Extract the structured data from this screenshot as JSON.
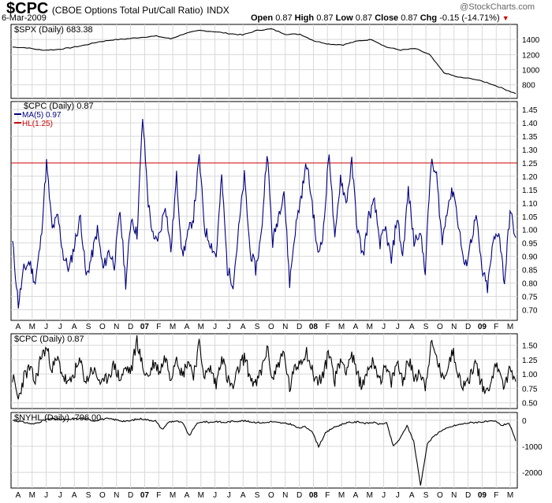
{
  "header": {
    "symbol": "$CPC",
    "name": "(CBOE Options Total Put/Call Ratio)",
    "exchange": "INDX",
    "date": "6-Mar-2009",
    "open_label": "Open",
    "open": "0.87",
    "high_label": "High",
    "high": "0.87",
    "low_label": "Low",
    "low": "0.87",
    "close_label": "Close",
    "close": "0.87",
    "chg_label": "Chg",
    "chg": "-0.15 (-14.71%)",
    "logo": "@StockCharts.com"
  },
  "colors": {
    "price": "#000000",
    "ma": "#000080",
    "hl": "#cc0000",
    "grid": "#d8d8d8",
    "axis": "#000000"
  },
  "x_axis": {
    "labels": [
      "A",
      "M",
      "J",
      "J",
      "A",
      "S",
      "O",
      "N",
      "D",
      "07",
      "F",
      "M",
      "A",
      "M",
      "J",
      "J",
      "A",
      "S",
      "O",
      "N",
      "D",
      "08",
      "F",
      "M",
      "A",
      "M",
      "J",
      "J",
      "A",
      "S",
      "O",
      "N",
      "D",
      "09",
      "F",
      "M"
    ],
    "bold": [
      "07",
      "08",
      "09"
    ]
  },
  "panels": [
    {
      "legend": "$SPX (Daily) 683.38",
      "ylim": [
        620,
        1600
      ],
      "ticks": [
        "1400",
        "1200",
        "1000",
        "800"
      ],
      "tick_values": [
        1400,
        1200,
        1000,
        800
      ],
      "series_key": "spx"
    },
    {
      "legend": "$CPC (Daily) 0.87",
      "legend_ma": "MA(5) 0.97",
      "legend_hl": "HL(1.25)",
      "ylim": [
        0.66,
        1.48
      ],
      "ticks": [
        "1.45",
        "1.40",
        "1.35",
        "1.30",
        "1.25",
        "1.20",
        "1.15",
        "1.10",
        "1.05",
        "1.00",
        "0.95",
        "0.90",
        "0.85",
        "0.80",
        "0.75",
        "0.70"
      ],
      "tick_values": [
        1.45,
        1.4,
        1.35,
        1.3,
        1.25,
        1.2,
        1.15,
        1.1,
        1.05,
        1.0,
        0.95,
        0.9,
        0.85,
        0.8,
        0.75,
        0.7
      ],
      "hline": 1.25,
      "series_key": "cpc_ma"
    },
    {
      "legend": "$CPC (Daily) 0.87",
      "ylim": [
        0.4,
        1.7
      ],
      "ticks": [
        "1.50",
        "1.25",
        "1.00",
        "0.75",
        "0.50"
      ],
      "tick_values": [
        1.5,
        1.25,
        1.0,
        0.75,
        0.5
      ],
      "series_key": "cpc"
    },
    {
      "legend": "$NYHL (Daily) -796.00",
      "ylim": [
        -2600,
        300
      ],
      "ticks": [
        "0",
        "-1000",
        "-2000"
      ],
      "tick_values": [
        0,
        -1000,
        -2000
      ],
      "series_key": "nyhl"
    }
  ],
  "chart_data": {
    "type": "line",
    "title": "$CPC (CBOE Options Total Put/Call Ratio) INDX",
    "x_range": [
      "Apr 2006",
      "Mar 2009"
    ],
    "series": [
      {
        "name": "$SPX (Daily)",
        "month_index": [
          0,
          1,
          2,
          3,
          4,
          5,
          6,
          7,
          8,
          9,
          10,
          11,
          12,
          13,
          14,
          15,
          16,
          17,
          18,
          19,
          20,
          21,
          22,
          23,
          24,
          25,
          26,
          27,
          28,
          29,
          30,
          31,
          32,
          33,
          34,
          35
        ],
        "values": [
          1300,
          1290,
          1260,
          1265,
          1290,
          1325,
          1370,
          1395,
          1410,
          1430,
          1445,
          1410,
          1480,
          1520,
          1505,
          1480,
          1460,
          1520,
          1540,
          1470,
          1470,
          1380,
          1340,
          1330,
          1380,
          1400,
          1300,
          1260,
          1280,
          1200,
          960,
          900,
          880,
          830,
          760,
          683
        ]
      },
      {
        "name": "$CPC MA(5)",
        "values": [
          0.95,
          0.72,
          0.85,
          0.88,
          0.8,
          0.96,
          1.25,
          1.0,
          1.05,
          0.9,
          0.85,
          0.95,
          1.05,
          0.82,
          0.9,
          1.0,
          0.85,
          0.92,
          0.87,
          1.07,
          0.8,
          1.05,
          0.98,
          1.42,
          1.1,
          0.95,
          0.98,
          1.1,
          0.92,
          1.2,
          0.9,
          0.98,
          1.05,
          1.27,
          1.0,
          0.95,
          0.9,
          1.2,
          0.85,
          0.8,
          1.0,
          1.2,
          0.92,
          0.85,
          0.98,
          1.3,
          0.95,
          1.05,
          1.15,
          0.8,
          1.0,
          1.12,
          1.25,
          1.1,
          0.9,
          1.0,
          1.3,
          0.95,
          1.2,
          1.1,
          1.25,
          1.0,
          0.9,
          1.05,
          1.1,
          0.95,
          1.0,
          0.88,
          1.05,
          0.9,
          1.15,
          0.95,
          1.0,
          0.85,
          1.25,
          1.2,
          0.95,
          1.1,
          1.15,
          1.0,
          0.85,
          0.95,
          1.05,
          0.85,
          0.78,
          0.95,
          1.0,
          0.8,
          1.07,
          0.97
        ]
      },
      {
        "name": "$CPC (Daily)",
        "values": [
          0.95,
          0.55,
          0.95,
          1.1,
          0.85,
          1.3,
          1.45,
          1.1,
          1.25,
          0.95,
          0.8,
          1.05,
          1.2,
          0.85,
          1.1,
          0.95,
          0.8,
          1.0,
          1.15,
          0.9,
          1.1,
          1.05,
          1.6,
          1.1,
          0.95,
          1.2,
          1.05,
          1.3,
          0.95,
          1.35,
          0.95,
          1.25,
          1.0,
          1.5,
          0.95,
          1.1,
          0.8,
          1.35,
          0.9,
          0.75,
          1.1,
          1.3,
          0.95,
          0.8,
          1.05,
          1.45,
          0.9,
          1.2,
          1.35,
          0.75,
          1.1,
          1.25,
          1.4,
          1.05,
          0.85,
          1.0,
          1.4,
          0.9,
          1.25,
          1.1,
          1.35,
          0.95,
          0.8,
          1.15,
          1.2,
          0.9,
          1.1,
          0.85,
          1.2,
          0.9,
          1.25,
          0.95,
          1.05,
          0.8,
          1.5,
          1.3,
          0.9,
          1.15,
          1.4,
          0.95,
          0.75,
          1.0,
          1.2,
          0.8,
          0.7,
          1.05,
          1.15,
          0.75,
          1.1,
          0.87
        ]
      },
      {
        "name": "$NYHL (Daily)",
        "values": [
          0,
          -40,
          -90,
          -150,
          -60,
          40,
          60,
          30,
          20,
          50,
          70,
          40,
          -20,
          40,
          60,
          30,
          -20,
          -40,
          30,
          60,
          10,
          -20,
          -350,
          -60,
          -30,
          -100,
          -600,
          -150,
          -50,
          -80,
          -40,
          -90,
          -50,
          -30,
          -20,
          -60,
          -80,
          -100,
          -50,
          -90,
          -120,
          -150,
          -300,
          -250,
          -400,
          -1000,
          -500,
          -300,
          -200,
          -100,
          -80,
          -60,
          -120,
          -80,
          -150,
          -100,
          -1000,
          -700,
          -200,
          -800,
          -2500,
          -900,
          -600,
          -400,
          -300,
          -200,
          -150,
          -100,
          -80,
          -60,
          -50,
          -40,
          -200,
          -100,
          -796
        ]
      }
    ],
    "reference_line": {
      "name": "HL(1.25)",
      "value": 1.25
    },
    "ylabel": ""
  }
}
